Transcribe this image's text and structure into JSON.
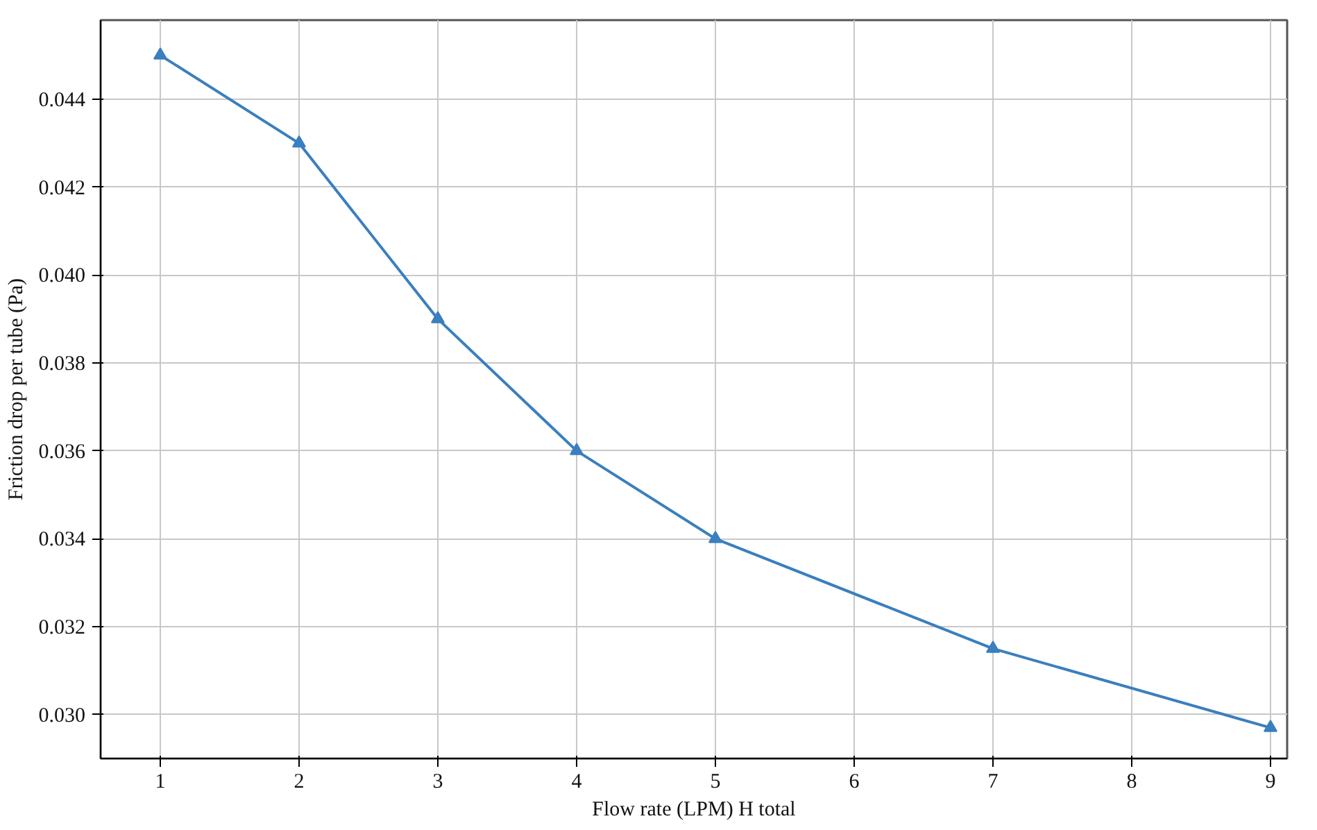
{
  "chart_data": {
    "type": "line",
    "xlabel": "Flow rate (LPM) H total",
    "ylabel": "Friction drop per tube (Pa)",
    "x": [
      1,
      2,
      3,
      4,
      5,
      7,
      9
    ],
    "series": [
      {
        "color": "#3a7fbf",
        "values": [
          0.045,
          0.043,
          0.039,
          0.036,
          0.034,
          0.0315,
          0.0297
        ]
      }
    ],
    "xlim": [
      0.57,
      9.12
    ],
    "ylim": [
      0.029,
      0.0458
    ],
    "xticks": [
      1,
      2,
      3,
      4,
      5,
      6,
      7,
      8,
      9
    ],
    "yticks": [
      {
        "value": 0.03,
        "label": "0.030"
      },
      {
        "value": 0.032,
        "label": "0.032"
      },
      {
        "value": 0.034,
        "label": "0.034"
      },
      {
        "value": 0.036,
        "label": "0.036"
      },
      {
        "value": 0.038,
        "label": "0.038"
      },
      {
        "value": 0.04,
        "label": "0.040"
      },
      {
        "value": 0.042,
        "label": "0.042"
      },
      {
        "value": 0.044,
        "label": "0.044"
      }
    ],
    "grid": true,
    "marker": "triangle",
    "line_style": "solid"
  }
}
